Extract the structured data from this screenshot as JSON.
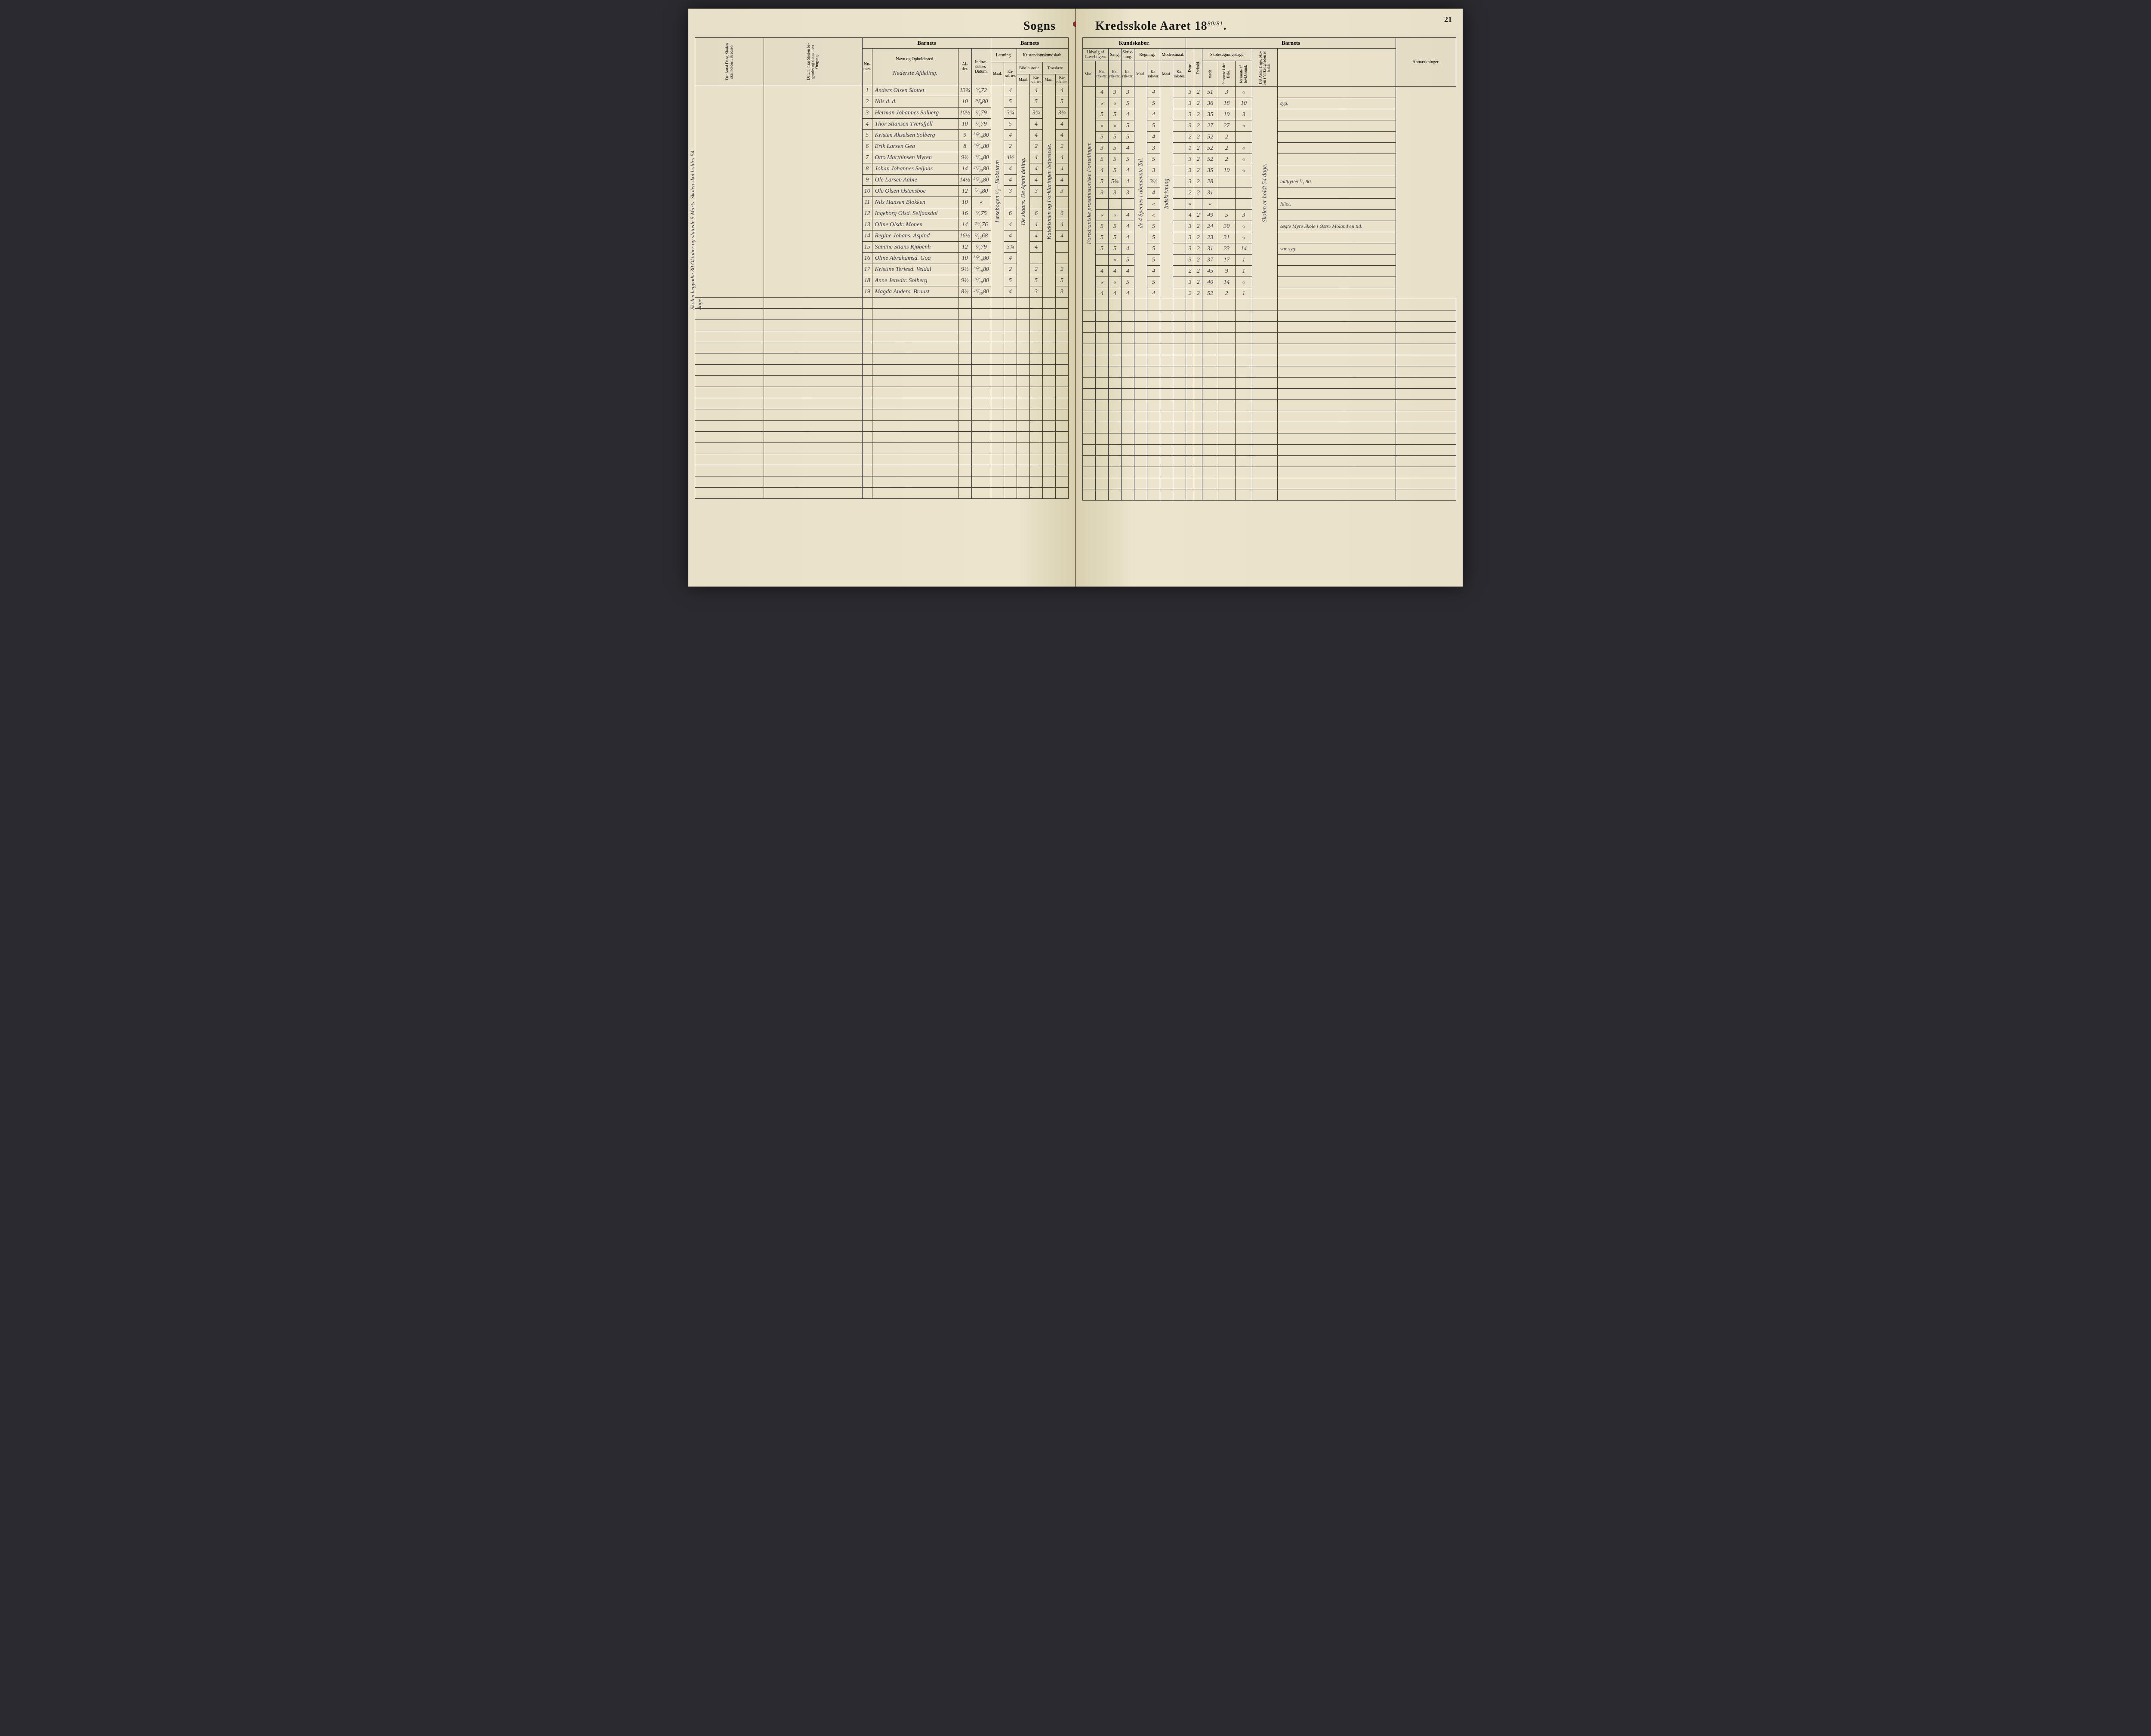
{
  "page_number": "21",
  "title_left": "Sogns",
  "title_right_prefix": "Kredsskole Aaret 18",
  "year_top": "80",
  "year_bottom": "81",
  "headers": {
    "barnets": "Barnets",
    "kundskaber": "Kundskaber.",
    "anmaerkninger": "Anmærkninger.",
    "laesning": "Læsning.",
    "kristendom": "Kristendomskundskab.",
    "bibelhistorie": "Bibelhistorie.",
    "troeslaere": "Troeslære.",
    "udvalg": "Udvalg af Læsebogen.",
    "sang": "Sang.",
    "skrivning": "Skriv-ning.",
    "regning": "Regning.",
    "modersmaal": "Modersmaal.",
    "skolesogning": "Skolesøgningsdage.",
    "numer": "Nu-mer.",
    "navn": "Navn og Opholdssted.",
    "alder": "Al-der.",
    "indtraedelse": "Indtræ-delses-Datum.",
    "maal": "Maal.",
    "karakter": "Ka-rak-ter.",
    "evne": "Evne.",
    "forhold": "Forhold.",
    "mode": "møde",
    "forsomte_hele": "forsømte i det Hele.",
    "forsomte_lovl": "forsømte af lovl.Grund.",
    "antal_dage_skole": "Det Antal Dage, Skolen skal holdes i Kredsen.",
    "datum_omgang": "Datum, naar Skolen be-gynder og slutter hver Omgang.",
    "antal_dage_virk": "Det Antal Dage, Sko-len i Virkeligheden er holdt."
  },
  "section_note": "Nederste Afdeling.",
  "margin_left": "Skolen begyndte 30 Oktober og sluttede 5 Marts. Skolen skal holdes 54 dage.",
  "rows": [
    {
      "n": "1",
      "name": "Anders Olsen Slottet",
      "age": "13¾",
      "date": "⁵⁄₉72",
      "l_m": "",
      "l_k": "4",
      "b_m": "",
      "b_k": "4",
      "t_m": "",
      "t_k": "4",
      "u_m": "",
      "u_k": "4",
      "sg": "3",
      "sk": "3",
      "r_m": "",
      "r_k": "4",
      "m_m": "",
      "m_k": "",
      "ev": "3",
      "fh": "2",
      "md": "51",
      "fs": "3",
      "fl": "«",
      "note": ""
    },
    {
      "n": "2",
      "name": "Nils      d.      d.",
      "age": "10",
      "date": "³⁰⁄₉80",
      "l_m": "",
      "l_k": "5",
      "b_m": "",
      "b_k": "5",
      "t_m": "",
      "t_k": "5",
      "u_m": "",
      "u_k": "«",
      "sg": "«",
      "sk": "5",
      "r_m": "",
      "r_k": "5",
      "m_m": "",
      "m_k": "",
      "ev": "3",
      "fh": "2",
      "md": "36",
      "fs": "18",
      "fl": "10",
      "note": "syg."
    },
    {
      "n": "3",
      "name": "Herman Johannes Solberg",
      "age": "10½",
      "date": "¹⁄₁79",
      "l_m": "",
      "l_k": "3¾",
      "b_m": "",
      "b_k": "3¾",
      "t_m": "",
      "t_k": "3¾",
      "u_m": "",
      "u_k": "5",
      "sg": "5",
      "sk": "4",
      "r_m": "",
      "r_k": "4",
      "m_m": "",
      "m_k": "",
      "ev": "3",
      "fh": "2",
      "md": "35",
      "fs": "19",
      "fl": "3",
      "note": ""
    },
    {
      "n": "4",
      "name": "Thor Stiansen Tversfjell",
      "age": "10",
      "date": "¹⁄₁79",
      "l_m": "",
      "l_k": "5",
      "b_m": "",
      "b_k": "4",
      "t_m": "",
      "t_k": "4",
      "u_m": "",
      "u_k": "«",
      "sg": "«",
      "sk": "5",
      "r_m": "",
      "r_k": "5",
      "m_m": "",
      "m_k": "",
      "ev": "3",
      "fh": "2",
      "md": "27",
      "fs": "27",
      "fl": "«",
      "note": ""
    },
    {
      "n": "5",
      "name": "Kristen Akselsen Solberg",
      "age": "9",
      "date": "³⁰⁄₁₀80",
      "l_m": "",
      "l_k": "4",
      "b_m": "",
      "b_k": "4",
      "t_m": "",
      "t_k": "4",
      "u_m": "",
      "u_k": "5",
      "sg": "5",
      "sk": "5",
      "r_m": "",
      "r_k": "4",
      "m_m": "",
      "m_k": "",
      "ev": "2",
      "fh": "2",
      "md": "52",
      "fs": "2",
      "fl": "",
      "note": ""
    },
    {
      "n": "6",
      "name": "Erik Larsen Gea",
      "age": "8",
      "date": "³⁰⁄₁₀80",
      "l_m": "",
      "l_k": "2",
      "b_m": "",
      "b_k": "2",
      "t_m": "",
      "t_k": "2",
      "u_m": "",
      "u_k": "3",
      "sg": "5",
      "sk": "4",
      "r_m": "",
      "r_k": "3",
      "m_m": "",
      "m_k": "",
      "ev": "1",
      "fh": "2",
      "md": "52",
      "fs": "2",
      "fl": "«",
      "note": ""
    },
    {
      "n": "7",
      "name": "Otto Marthinsen Myren",
      "age": "9½",
      "date": "³⁰⁄₁₀80",
      "l_m": "",
      "l_k": "4½",
      "b_m": "",
      "b_k": "4",
      "t_m": "",
      "t_k": "4",
      "u_m": "",
      "u_k": "5",
      "sg": "5",
      "sk": "5",
      "r_m": "",
      "r_k": "5",
      "m_m": "",
      "m_k": "",
      "ev": "3",
      "fh": "2",
      "md": "52",
      "fs": "2",
      "fl": "«",
      "note": ""
    },
    {
      "n": "8",
      "name": "Johan Johannes Seljaas",
      "age": "14",
      "date": "³⁰⁄₁₀80",
      "l_m": "",
      "l_k": "4",
      "b_m": "",
      "b_k": "4",
      "t_m": "",
      "t_k": "4",
      "u_m": "",
      "u_k": "4",
      "sg": "5",
      "sk": "4",
      "r_m": "",
      "r_k": "3",
      "m_m": "",
      "m_k": "",
      "ev": "3",
      "fh": "2",
      "md": "35",
      "fs": "19",
      "fl": "«",
      "note": ""
    },
    {
      "n": "9",
      "name": "Ole Larsen Aabie",
      "age": "14½",
      "date": "³⁰⁄₁₀80",
      "l_m": "",
      "l_k": "4",
      "b_m": "",
      "b_k": "4",
      "t_m": "",
      "t_k": "4",
      "u_m": "",
      "u_k": "5",
      "sg": "5¼",
      "sk": "4",
      "r_m": "",
      "r_k": "3½",
      "m_m": "",
      "m_k": "",
      "ev": "3",
      "fh": "2",
      "md": "28",
      "fs": "",
      "fl": "",
      "note": "indflyttet ⁵⁄₁ 80."
    },
    {
      "n": "10",
      "name": "Ole Olsen Østensboe",
      "age": "12",
      "date": "⁷⁄₁₀80",
      "l_m": "",
      "l_k": "3",
      "b_m": "",
      "b_k": "3",
      "t_m": "",
      "t_k": "3",
      "u_m": "",
      "u_k": "3",
      "sg": "3",
      "sk": "3",
      "r_m": "",
      "r_k": "4",
      "m_m": "",
      "m_k": "",
      "ev": "2",
      "fh": "2",
      "md": "31",
      "fs": "",
      "fl": "",
      "note": ""
    },
    {
      "n": "11",
      "name": "Nils Hansen Blokken",
      "age": "10",
      "date": "«",
      "l_m": "",
      "l_k": "",
      "b_m": "",
      "b_k": "",
      "t_m": "",
      "t_k": "",
      "u_m": "",
      "u_k": "",
      "sg": "",
      "sk": "",
      "r_m": "",
      "r_k": "«",
      "m_m": "",
      "m_k": "",
      "ev": "«",
      "fh": "",
      "md": "«",
      "fs": "",
      "fl": "",
      "note": "Idiot."
    },
    {
      "n": "12",
      "name": "Ingeborg Olsd. Seljaasdal",
      "age": "16",
      "date": "¹⁄₁75",
      "l_m": "",
      "l_k": "6",
      "b_m": "",
      "b_k": "6",
      "t_m": "",
      "t_k": "6",
      "u_m": "",
      "u_k": "«",
      "sg": "«",
      "sk": "4",
      "r_m": "",
      "r_k": "«",
      "m_m": "",
      "m_k": "",
      "ev": "4",
      "fh": "2",
      "md": "49",
      "fs": "5",
      "fl": "3",
      "note": ""
    },
    {
      "n": "13",
      "name": "Oline Olsdr. Monen",
      "age": "14",
      "date": "²⁴⁄₁76",
      "l_m": "",
      "l_k": "4",
      "b_m": "",
      "b_k": "4",
      "t_m": "",
      "t_k": "4",
      "u_m": "",
      "u_k": "5",
      "sg": "5",
      "sk": "4",
      "r_m": "",
      "r_k": "5",
      "m_m": "",
      "m_k": "",
      "ev": "3",
      "fh": "2",
      "md": "24",
      "fs": "30",
      "fl": "«",
      "note": "søgte Myre Skole i Østre Moland en tid."
    },
    {
      "n": "14",
      "name": "Regine Johans. Aspind",
      "age": "16½",
      "date": "¹⁄₁₀68",
      "l_m": "",
      "l_k": "4",
      "b_m": "",
      "b_k": "4",
      "t_m": "",
      "t_k": "4",
      "u_m": "",
      "u_k": "5",
      "sg": "5",
      "sk": "4",
      "r_m": "",
      "r_k": "5",
      "m_m": "",
      "m_k": "",
      "ev": "3",
      "fh": "2",
      "md": "23",
      "fs": "31",
      "fl": "«",
      "note": ""
    },
    {
      "n": "15",
      "name": "Samine Stians Kjøbenh",
      "age": "12",
      "date": "¹⁄₁79",
      "l_m": "",
      "l_k": "3¾",
      "b_m": "",
      "b_k": "4",
      "t_m": "",
      "t_k": "",
      "u_m": "",
      "u_k": "5",
      "sg": "5",
      "sk": "4",
      "r_m": "",
      "r_k": "5",
      "m_m": "",
      "m_k": "",
      "ev": "3",
      "fh": "2",
      "md": "31",
      "fs": "23",
      "fl": "14",
      "note": "var syg."
    },
    {
      "n": "16",
      "name": "Oline Abrahamsd. Goa",
      "age": "10",
      "date": "³⁰⁄₁₀80",
      "l_m": "",
      "l_k": "4",
      "b_m": "",
      "b_k": "",
      "t_m": "",
      "t_k": "",
      "u_m": "",
      "u_k": "",
      "sg": "«",
      "sk": "5",
      "r_m": "",
      "r_k": "5",
      "m_m": "",
      "m_k": "",
      "ev": "3",
      "fh": "2",
      "md": "37",
      "fs": "17",
      "fl": "1",
      "note": ""
    },
    {
      "n": "17",
      "name": "Kristine Terjesd. Veidal",
      "age": "9½",
      "date": "³⁰⁄₁₀80",
      "l_m": "",
      "l_k": "2",
      "b_m": "",
      "b_k": "2",
      "t_m": "",
      "t_k": "2",
      "u_m": "",
      "u_k": "4",
      "sg": "4",
      "sk": "4",
      "r_m": "",
      "r_k": "4",
      "m_m": "",
      "m_k": "",
      "ev": "2",
      "fh": "2",
      "md": "45",
      "fs": "9",
      "fl": "1",
      "note": ""
    },
    {
      "n": "18",
      "name": "Anne Jensdtr. Solberg",
      "age": "9½",
      "date": "³⁰⁄₁₀80",
      "l_m": "",
      "l_k": "5",
      "b_m": "",
      "b_k": "5",
      "t_m": "",
      "t_k": "5",
      "u_m": "",
      "u_k": "«",
      "sg": "«",
      "sk": "5",
      "r_m": "",
      "r_k": "5",
      "m_m": "",
      "m_k": "",
      "ev": "3",
      "fh": "2",
      "md": "40",
      "fs": "14",
      "fl": "«",
      "note": ""
    },
    {
      "n": "19",
      "name": "Magda Anders. Braast",
      "age": "8½",
      "date": "³⁰⁄₁₀80",
      "l_m": "",
      "l_k": "4",
      "b_m": "",
      "b_k": "3",
      "t_m": "",
      "t_k": "3",
      "u_m": "",
      "u_k": "4",
      "sg": "4",
      "sk": "4",
      "r_m": "",
      "r_k": "4",
      "m_m": "",
      "m_k": "",
      "ev": "2",
      "fh": "2",
      "md": "52",
      "fs": "2",
      "fl": "1",
      "note": ""
    }
  ],
  "vertical_subjects": {
    "laesning": "Læsebogen ¹⁄₂—Blokstavn",
    "bibel": "De skaars.  De Afsnit deling.",
    "troes": "Katekismen og Forklaringen befæstede.",
    "udvalg": "Foredrantske prosahistoriske Fortælinger.",
    "regning": "de 4 Species i ubenævnte Tal.",
    "moders": "Indskrivning."
  },
  "right_margin_note": "Skolen er holdt 54 dage."
}
